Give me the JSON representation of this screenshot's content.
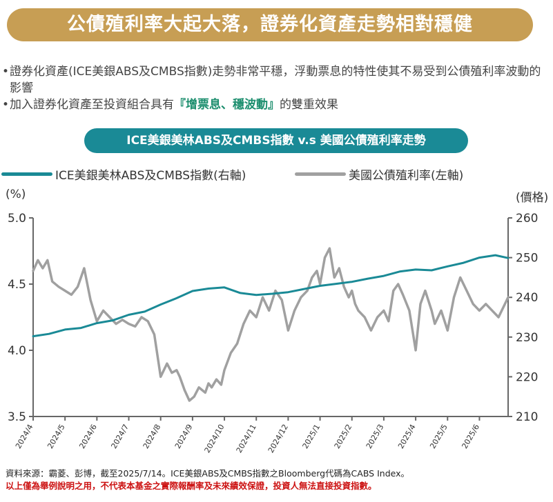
{
  "headline": "公債殖利率大起大落，證券化資產走勢相對穩健",
  "bullets": [
    {
      "text": "證券化資產(ICE美銀ABS及CMBS指數)走勢非常平穩，浮動票息的特性使其不易受到公債殖利率波動的影響"
    },
    {
      "prefix": "加入證券化資產至投資組合具有",
      "highlight": "『增票息、穩波動』",
      "suffix": "的雙重效果"
    }
  ],
  "bullet_symbol": "•",
  "footer": {
    "source": "資料來源：霸菱、彭博，截至2025/7/14。ICE美銀ABS及CMBS指數之Bloomberg代碼為CABS Index。",
    "disclaimer": "以上僅為舉例說明之用，不代表本基金之實際報酬率及未來績效保證，投資人無法直接投資指數。"
  },
  "colors": {
    "headline_bg": "#c79e54",
    "subtitle_bg": "#1a8a96",
    "highlight": "#1c8e6e",
    "disclaimer": "#cc1111"
  },
  "chart_data": {
    "type": "line",
    "title": "ICE美銀美林ABS及CMBS指數 v.s 美國公債殖利率走勢",
    "x_ticks": [
      "2024/4",
      "2024/5",
      "2024/6",
      "2024/7",
      "2024/8",
      "2024/9",
      "2024/10",
      "2024/11",
      "2024/12",
      "2025/1",
      "2025/2",
      "2025/3",
      "2025/4",
      "2025/5",
      "2025/6"
    ],
    "left_axis": {
      "label": "(%)",
      "ticks": [
        "3.5",
        "4.0",
        "4.5",
        "5.0"
      ],
      "range": [
        3.5,
        5.0
      ]
    },
    "right_axis": {
      "label": "(價格)",
      "ticks": [
        "210",
        "220",
        "230",
        "240",
        "250",
        "260"
      ],
      "range": [
        210,
        260
      ]
    },
    "legend_position": "top",
    "grid": false,
    "x_range": [
      0,
      14.9
    ],
    "series": [
      {
        "name": "ICE美銀美林ABS及CMBS指數(右軸)",
        "axis": "right",
        "color": "#1a8a96",
        "x": [
          0,
          0.5,
          1,
          1.5,
          2,
          2.5,
          3,
          3.5,
          4,
          4.5,
          5,
          5.5,
          6,
          6.5,
          7,
          7.5,
          8,
          8.5,
          9,
          9.5,
          10,
          10.5,
          11,
          11.5,
          12,
          12.5,
          13,
          13.5,
          14,
          14.5,
          14.9
        ],
        "values": [
          230.2,
          230.8,
          231.9,
          232.3,
          233.5,
          234.2,
          235.6,
          236.4,
          238.2,
          239.8,
          241.6,
          242.2,
          242.5,
          241.1,
          240.6,
          240.9,
          241.3,
          242.1,
          242.9,
          243.4,
          243.9,
          244.7,
          245.4,
          246.5,
          247.0,
          246.8,
          247.8,
          248.7,
          250.0,
          250.6,
          249.9
        ]
      },
      {
        "name": "美國公債殖利率(左軸)",
        "axis": "left",
        "color": "#a0a0a0",
        "x": [
          0,
          0.15,
          0.3,
          0.45,
          0.6,
          0.8,
          1.0,
          1.2,
          1.4,
          1.6,
          1.8,
          2.0,
          2.2,
          2.4,
          2.6,
          2.8,
          3.0,
          3.2,
          3.4,
          3.6,
          3.8,
          4.0,
          4.2,
          4.35,
          4.5,
          4.6,
          4.75,
          4.9,
          5.05,
          5.2,
          5.3,
          5.4,
          5.5,
          5.6,
          5.75,
          5.9,
          6.0,
          6.2,
          6.4,
          6.6,
          6.8,
          7.0,
          7.2,
          7.4,
          7.6,
          7.8,
          8.0,
          8.2,
          8.4,
          8.6,
          8.75,
          8.9,
          9.0,
          9.15,
          9.3,
          9.45,
          9.6,
          9.75,
          9.9,
          10.0,
          10.1,
          10.2,
          10.4,
          10.6,
          10.8,
          11.0,
          11.15,
          11.3,
          11.45,
          11.6,
          11.8,
          12.0,
          12.15,
          12.3,
          12.5,
          12.6,
          12.8,
          13.0,
          13.2,
          13.4,
          13.6,
          13.8,
          14.0,
          14.2,
          14.4,
          14.6,
          14.9
        ],
        "values": [
          4.6,
          4.68,
          4.62,
          4.68,
          4.52,
          4.48,
          4.45,
          4.42,
          4.48,
          4.62,
          4.38,
          4.22,
          4.3,
          4.25,
          4.2,
          4.23,
          4.2,
          4.18,
          4.25,
          4.22,
          4.12,
          3.8,
          3.9,
          3.83,
          3.85,
          3.8,
          3.7,
          3.62,
          3.65,
          3.72,
          3.7,
          3.68,
          3.75,
          3.72,
          3.78,
          3.74,
          3.85,
          3.98,
          4.05,
          4.2,
          4.3,
          4.25,
          4.4,
          4.3,
          4.45,
          4.38,
          4.15,
          4.3,
          4.4,
          4.45,
          4.55,
          4.6,
          4.5,
          4.7,
          4.77,
          4.55,
          4.62,
          4.48,
          4.4,
          4.45,
          4.35,
          4.3,
          4.25,
          4.15,
          4.25,
          4.3,
          4.22,
          4.45,
          4.5,
          4.42,
          4.3,
          4.0,
          4.35,
          4.45,
          4.3,
          4.2,
          4.3,
          4.15,
          4.4,
          4.55,
          4.45,
          4.35,
          4.3,
          4.35,
          4.3,
          4.25,
          4.4
        ]
      }
    ]
  }
}
